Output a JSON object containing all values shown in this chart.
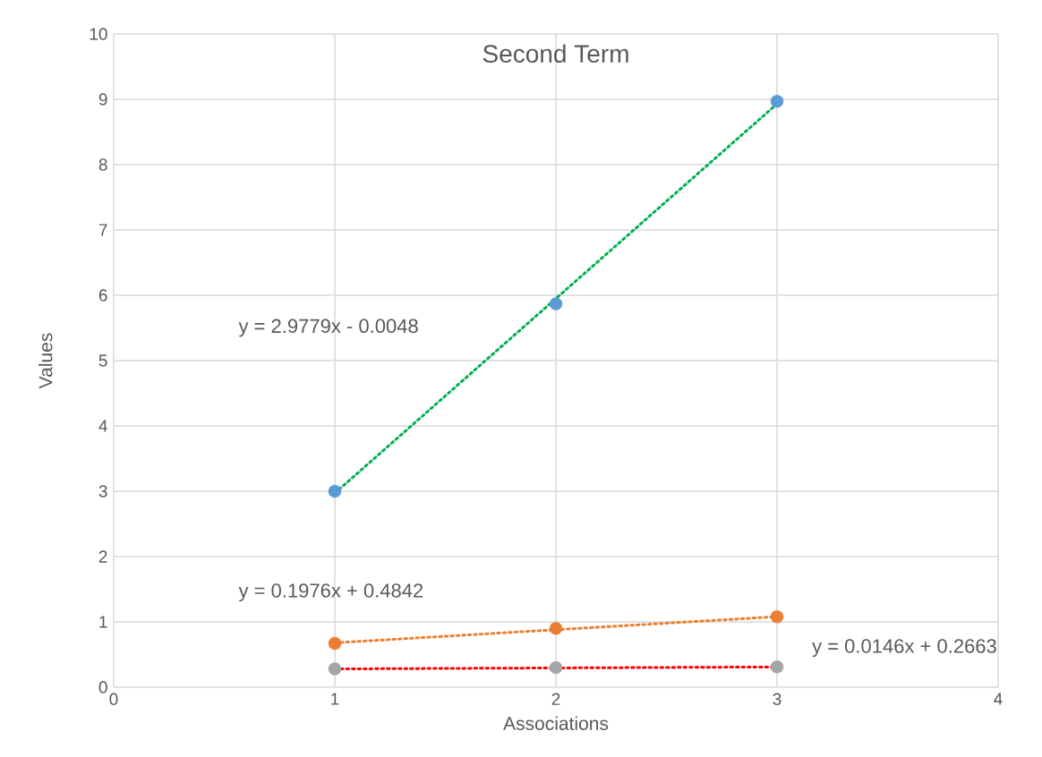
{
  "chart_data": {
    "type": "scatter",
    "title": "Second Term",
    "xlabel": "Associations",
    "ylabel": "Values",
    "xlim": [
      0,
      4
    ],
    "xticks": [
      0,
      1,
      2,
      3,
      4
    ],
    "ylim": [
      0,
      10
    ],
    "yticks": [
      0,
      1,
      2,
      3,
      4,
      5,
      6,
      7,
      8,
      9,
      10
    ],
    "grid": true,
    "series": [
      {
        "type": "line",
        "line_style": "dotted",
        "marker": "none",
        "color": "#00b050",
        "x": [
          1,
          3
        ],
        "values": [
          2.97,
          8.93
        ]
      },
      {
        "type": "line",
        "line_style": "dotted",
        "marker": "none",
        "color": "#ed7d31",
        "x": [
          1,
          3
        ],
        "values": [
          0.68,
          1.08
        ]
      },
      {
        "type": "line",
        "line_style": "dotted",
        "marker": "none",
        "color": "#ff0000",
        "x": [
          1,
          3
        ],
        "values": [
          0.28,
          0.31
        ]
      },
      {
        "marker": "circle",
        "color": "#5b9bd5",
        "x": [
          1,
          2,
          3
        ],
        "values": [
          3.0,
          5.87,
          8.97
        ]
      },
      {
        "marker": "circle",
        "color": "#ed7d31",
        "x": [
          1,
          2,
          3
        ],
        "values": [
          0.67,
          0.9,
          1.08
        ]
      },
      {
        "marker": "circle",
        "color": "#a5a5a5",
        "x": [
          1,
          2,
          3
        ],
        "values": [
          0.28,
          0.3,
          0.31
        ]
      }
    ],
    "annotations": [
      "y = 2.9779x - 0.0048",
      "y = 0.1976x + 0.4842",
      "y = 0.0146x + 0.2663"
    ]
  }
}
